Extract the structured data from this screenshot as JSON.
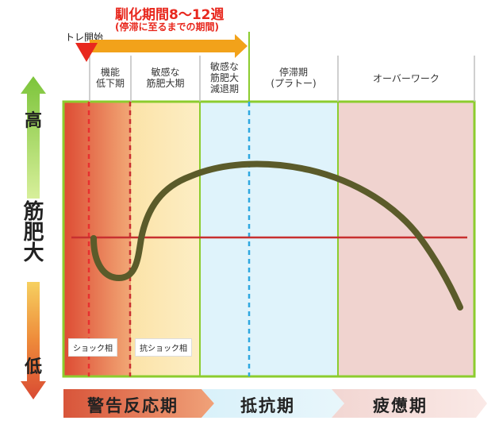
{
  "header": {
    "title": "馴化期間8～12週",
    "subtitle": "(停滞に至るまでの期間)",
    "start_label": "トレ開始"
  },
  "phases": [
    {
      "label": "機能\n低下期"
    },
    {
      "label": "敏感な\n筋肥大期"
    },
    {
      "label": "敏感な\n筋肥大\n減退期"
    },
    {
      "label": "停滞期\n(プラトー)"
    },
    {
      "label": "オーバーワーク"
    }
  ],
  "y_axis": {
    "high": "高",
    "middle": "筋肥大",
    "low": "低"
  },
  "boxes": {
    "shock": "ショック相",
    "anti_shock": "抗ショック相"
  },
  "bottom": {
    "alarm": "警告反応期",
    "resistance": "抵抗期",
    "exhaustion": "疲憊期"
  },
  "colors": {
    "frame_green": "#8ccc2e",
    "title_red": "#e8281e",
    "arrow_orange": "#f2a21a",
    "curve": "#5b5b2a",
    "baseline": "#c83030",
    "stop_zone": "#dff3fb",
    "over_zone": "#f0d3cf",
    "dashed_red": "#e83030",
    "dashed_blue": "#2fa7e0"
  }
}
